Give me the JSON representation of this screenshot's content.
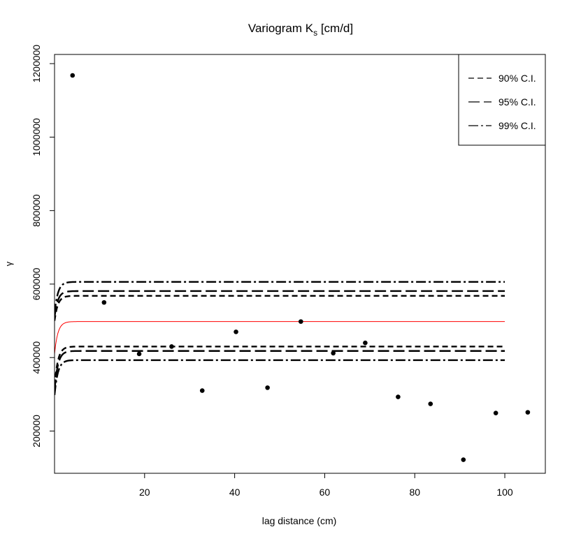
{
  "chart_data": {
    "type": "scatter",
    "title": {
      "main": "Variogram K",
      "subscript": "s",
      "suffix": " [cm/d]"
    },
    "xlabel": "lag distance (cm)",
    "ylabel": "γ",
    "xlim": [
      0,
      109
    ],
    "ylim": [
      85000,
      1225000
    ],
    "x_ticks": [
      20,
      40,
      60,
      80,
      100
    ],
    "x_tick_labels": [
      "20",
      "40",
      "60",
      "80",
      "100"
    ],
    "y_ticks": [
      200000,
      400000,
      600000,
      800000,
      1000000,
      1200000
    ],
    "y_tick_labels": [
      "200000",
      "400000",
      "600000",
      "800000",
      "1000000",
      "1200000"
    ],
    "points": {
      "x": [
        4,
        11,
        18.8,
        26,
        32.8,
        40.3,
        47.3,
        54.7,
        61.9,
        69,
        76.3,
        83.5,
        90.8,
        98,
        105.1
      ],
      "y": [
        1168000,
        550000,
        410000,
        430000,
        310000,
        470000,
        318000,
        498000,
        412000,
        440000,
        293000,
        274000,
        122000,
        249000,
        251000
      ]
    },
    "model": {
      "name": "fitted variogram",
      "color": "#ff0000",
      "nugget": 410000,
      "sill": 498000,
      "range": 2.2,
      "x_max": 100
    },
    "envelopes": [
      {
        "name": "90% C.I.",
        "dash": "dashed",
        "upper": {
          "nugget": 500000,
          "sill": 568000
        },
        "lower": {
          "nugget": 322000,
          "sill": 430000
        }
      },
      {
        "name": "95% C.I.",
        "dash": "longdash",
        "upper": {
          "nugget": 510000,
          "sill": 581000
        },
        "lower": {
          "nugget": 310000,
          "sill": 418000
        }
      },
      {
        "name": "99% C.I.",
        "dash": "dotdash",
        "upper": {
          "nugget": 520000,
          "sill": 606000
        },
        "lower": {
          "nugget": 298000,
          "sill": 393000
        }
      }
    ],
    "legend": {
      "position": "top-right",
      "items": [
        "90% C.I.",
        "95% C.I.",
        "99% C.I."
      ]
    }
  }
}
